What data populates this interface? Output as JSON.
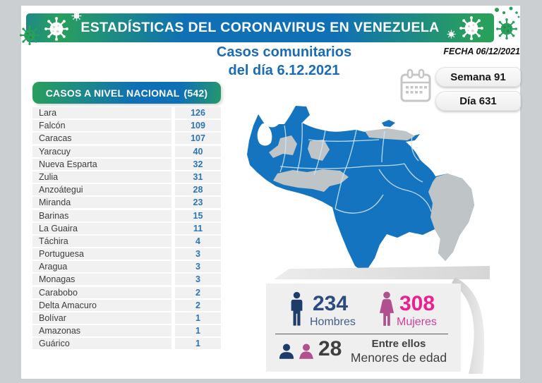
{
  "banner": {
    "title": "ESTADÍSTICAS DEL CORONAVIRUS EN VENEZUELA"
  },
  "subtitle": {
    "line1": "Casos comunitarios",
    "line2": "del día 6.12.2021"
  },
  "date_label": "FECHA 06/12/2021",
  "badges": {
    "week": "Semana 91",
    "day": "Día 631"
  },
  "table": {
    "title": "CASOS A NIVEL NACIONAL",
    "total": "(542)",
    "rows": [
      {
        "state": "Lara",
        "value": 126
      },
      {
        "state": "Falcón",
        "value": 109
      },
      {
        "state": "Caracas",
        "value": 107
      },
      {
        "state": "Yaracuy",
        "value": 40
      },
      {
        "state": "Nueva Esparta",
        "value": 32
      },
      {
        "state": "Zulia",
        "value": 31
      },
      {
        "state": "Anzoátegui",
        "value": 28
      },
      {
        "state": "Miranda",
        "value": 23
      },
      {
        "state": "Barinas",
        "value": 15
      },
      {
        "state": "La Guaira",
        "value": 11
      },
      {
        "state": "Táchira",
        "value": 4
      },
      {
        "state": "Portuguesa",
        "value": 3
      },
      {
        "state": "Aragua",
        "value": 3
      },
      {
        "state": "Monagas",
        "value": 3
      },
      {
        "state": "Carabobo",
        "value": 2
      },
      {
        "state": "Delta Amacuro",
        "value": 2
      },
      {
        "state": "Bolívar",
        "value": 1
      },
      {
        "state": "Amazonas",
        "value": 1
      },
      {
        "state": "Guárico",
        "value": 1
      }
    ]
  },
  "stats": {
    "men": {
      "value": "234",
      "label": "Hombres"
    },
    "women": {
      "value": "308",
      "label": "Mujeres"
    },
    "minors": {
      "value": "28",
      "line1": "Entre ellos",
      "line2": "Menores de edad"
    }
  },
  "chart_data": {
    "type": "table",
    "title": "CASOS A NIVEL NACIONAL (542)",
    "categories": [
      "Lara",
      "Falcón",
      "Caracas",
      "Yaracuy",
      "Nueva Esparta",
      "Zulia",
      "Anzoátegui",
      "Miranda",
      "Barinas",
      "La Guaira",
      "Táchira",
      "Portuguesa",
      "Aragua",
      "Monagas",
      "Carabobo",
      "Delta Amacuro",
      "Bolívar",
      "Amazonas",
      "Guárico"
    ],
    "values": [
      126,
      109,
      107,
      40,
      32,
      31,
      28,
      23,
      15,
      11,
      4,
      3,
      3,
      3,
      2,
      2,
      1,
      1,
      1
    ],
    "total": 542,
    "annotations": {
      "hombres": 234,
      "mujeres": 308,
      "menores_de_edad": 28,
      "semana": 91,
      "dia": 631,
      "fecha": "06/12/2021"
    }
  },
  "colors": {
    "frame": "#cbcfd2",
    "paper": "#ffffff",
    "teal": "#1d8a86",
    "green": "#28a05c",
    "blue": "#0f70b6",
    "title_blue": "#1a6cb5",
    "row_bg": "#f1f1f2",
    "row_text": "#3d3d3d",
    "value_blue": "#2d74b5",
    "navy": "#2d4b7f",
    "navy_icon": "#1e3c6a",
    "navy_label": "#3f5e8e",
    "pink": "#ee1e8f",
    "pink_icon": "#b1508f",
    "pink_label": "#cf3f98",
    "dark_text": "#3f3f3f",
    "map_blue": "#1474c0",
    "map_gray": "#bfc4c7",
    "map_border": "#cfe6f7",
    "card_bg": "#efefef",
    "badge_bg": "#eeeeee",
    "calendar_gray": "#c6c6c6"
  }
}
